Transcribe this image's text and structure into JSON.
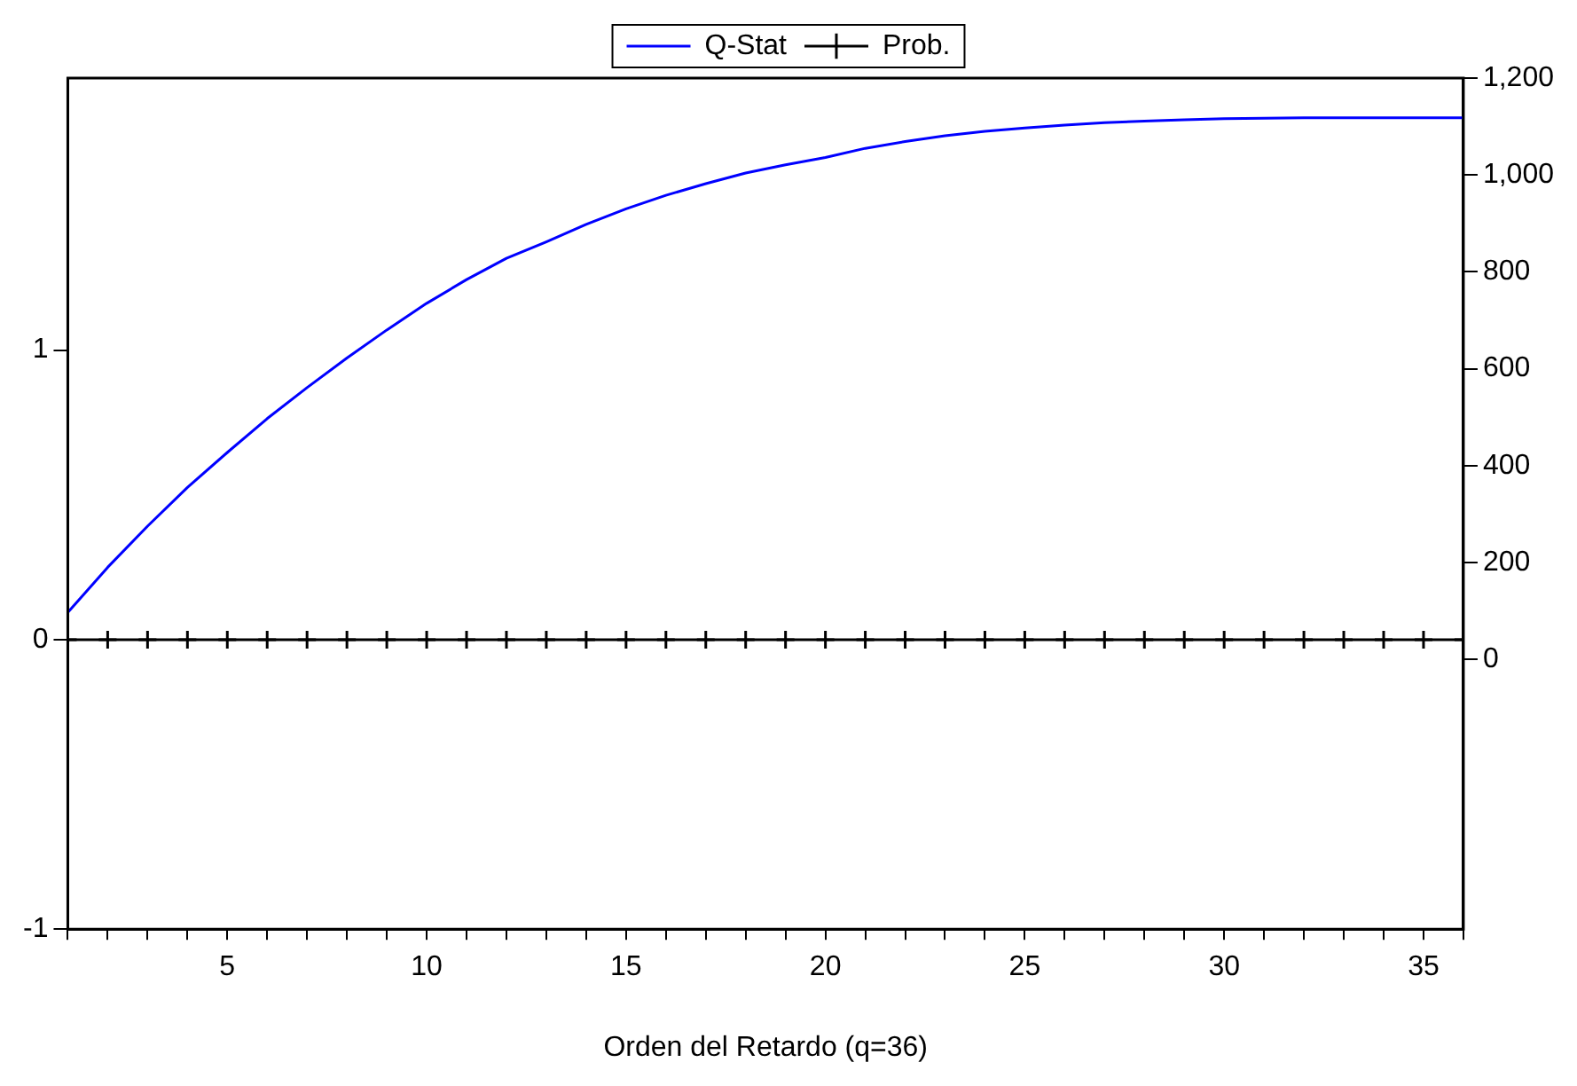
{
  "chart_data": {
    "type": "line",
    "xlabel": "Orden del Retardo (q=36)",
    "x": [
      1,
      2,
      3,
      4,
      5,
      6,
      7,
      8,
      9,
      10,
      11,
      12,
      13,
      14,
      15,
      16,
      17,
      18,
      19,
      20,
      21,
      22,
      23,
      24,
      25,
      26,
      27,
      28,
      29,
      30,
      31,
      32,
      33,
      34,
      35,
      36
    ],
    "series": [
      {
        "name": "Q-Stat",
        "type": "line",
        "axis": "y2",
        "color": "#0000ff",
        "marker": "none",
        "values": [
          97,
          190,
          275,
          355,
          427,
          497,
          561,
          622,
          680,
          735,
          784,
          828,
          862,
          898,
          930,
          958,
          982,
          1004,
          1021,
          1036,
          1055,
          1069,
          1081,
          1090,
          1097,
          1103,
          1108,
          1111,
          1114,
          1116,
          1117,
          1118,
          1118,
          1118,
          1118,
          1118
        ]
      },
      {
        "name": "Prob.",
        "type": "line",
        "axis": "y",
        "color": "#000000",
        "marker": "cross",
        "values": [
          0,
          0,
          0,
          0,
          0,
          0,
          0,
          0,
          0,
          0,
          0,
          0,
          0,
          0,
          0,
          0,
          0,
          0,
          0,
          0,
          0,
          0,
          0,
          0,
          0,
          0,
          0,
          0,
          0,
          0,
          0,
          0,
          0,
          0,
          0,
          0
        ]
      }
    ],
    "xlim": [
      1,
      36
    ],
    "xticks": [
      {
        "value": 1,
        "label": null
      },
      {
        "value": 2,
        "label": null
      },
      {
        "value": 3,
        "label": null
      },
      {
        "value": 4,
        "label": null
      },
      5,
      {
        "value": 6,
        "label": null
      },
      {
        "value": 7,
        "label": null
      },
      {
        "value": 8,
        "label": null
      },
      {
        "value": 9,
        "label": null
      },
      10,
      {
        "value": 11,
        "label": null
      },
      {
        "value": 12,
        "label": null
      },
      {
        "value": 13,
        "label": null
      },
      {
        "value": 14,
        "label": null
      },
      15,
      {
        "value": 16,
        "label": null
      },
      {
        "value": 17,
        "label": null
      },
      {
        "value": 18,
        "label": null
      },
      {
        "value": 19,
        "label": null
      },
      20,
      {
        "value": 21,
        "label": null
      },
      {
        "value": 22,
        "label": null
      },
      {
        "value": 23,
        "label": null
      },
      {
        "value": 24,
        "label": null
      },
      25,
      {
        "value": 26,
        "label": null
      },
      {
        "value": 27,
        "label": null
      },
      {
        "value": 28,
        "label": null
      },
      {
        "value": 29,
        "label": null
      },
      30,
      {
        "value": 31,
        "label": null
      },
      {
        "value": 32,
        "label": null
      },
      {
        "value": 33,
        "label": null
      },
      {
        "value": 34,
        "label": null
      },
      35,
      {
        "value": 36,
        "label": null
      }
    ],
    "ylim": [
      -1,
      1.94
    ],
    "yticks": [
      -1,
      0,
      1
    ],
    "y2lim": [
      -557,
      1200
    ],
    "y2ticks": [
      0,
      200,
      400,
      600,
      800,
      {
        "value": 1000,
        "label": "1,000"
      },
      {
        "value": 1200,
        "label": "1,200"
      }
    ],
    "legend": "top"
  }
}
